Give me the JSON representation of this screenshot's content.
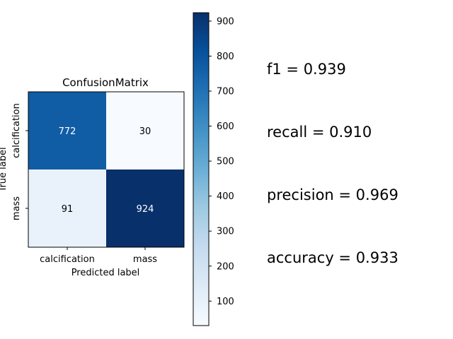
{
  "chart_data": {
    "type": "heatmap",
    "title": "ConfusionMatrix",
    "xlabel": "Predicted label",
    "ylabel": "True label",
    "x_categories": [
      "calcification",
      "mass"
    ],
    "y_categories": [
      "calcification",
      "mass"
    ],
    "matrix": [
      [
        772,
        30
      ],
      [
        91,
        924
      ]
    ],
    "colormap": "Blues",
    "colorbar": {
      "range": [
        30,
        924
      ],
      "ticks": [
        100,
        200,
        300,
        400,
        500,
        600,
        700,
        800,
        900
      ]
    },
    "grid": false
  },
  "metrics": [
    {
      "text": "f1 = 0.939"
    },
    {
      "text": "recall = 0.910"
    },
    {
      "text": "precision = 0.969"
    },
    {
      "text": "accuracy = 0.933"
    }
  ],
  "colors": {
    "blues_low": "#f7fbff",
    "blues_high": "#08306b"
  }
}
